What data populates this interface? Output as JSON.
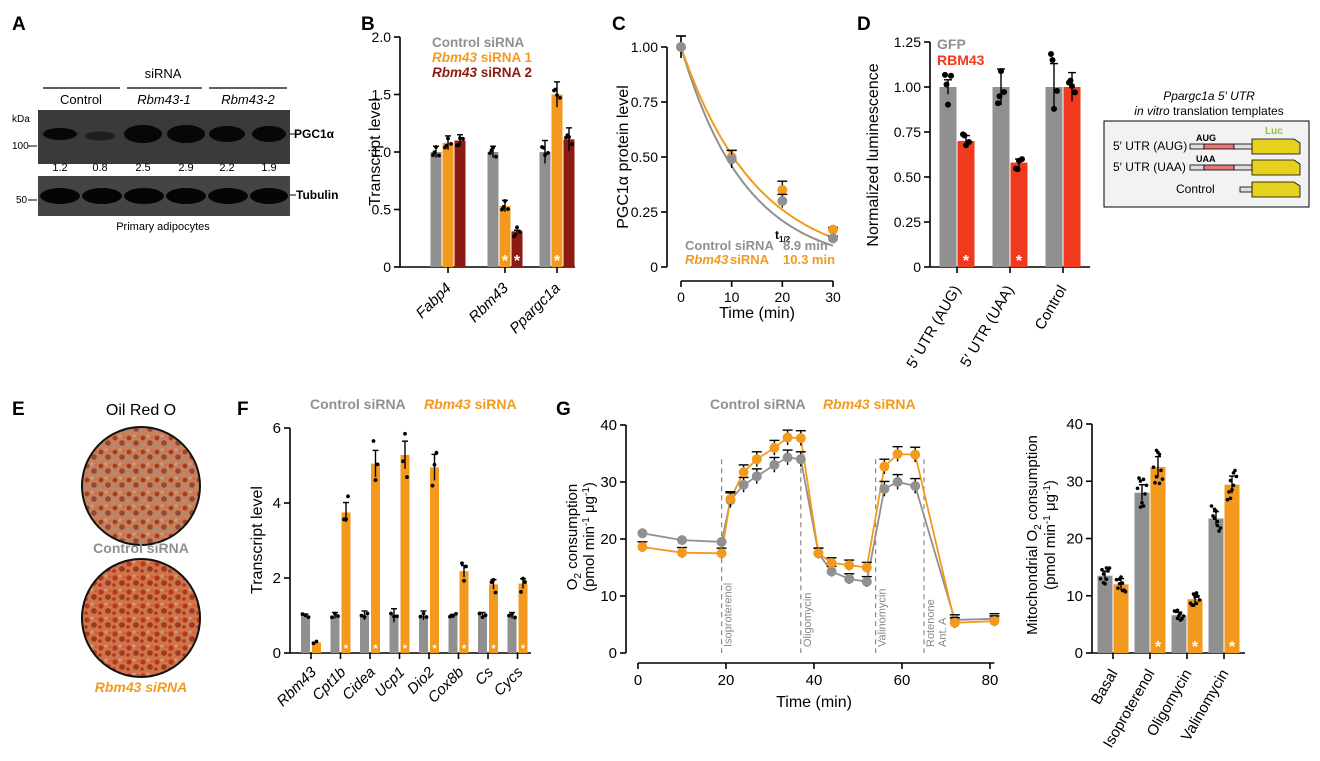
{
  "colors": {
    "gray": "#909090",
    "orange": "#f39a1e",
    "darkred": "#8b1a12",
    "red": "#f03a1e",
    "black": "#000000",
    "green": "#8dc63f",
    "yellow": "#e6d21e",
    "pink": "#e87878"
  },
  "panels": {
    "A": "A",
    "B": "B",
    "C": "C",
    "D": "D",
    "E": "E",
    "F": "F",
    "G": "G"
  },
  "panel_a": {
    "sirna_label": "siRNA",
    "kda_label": "kDa",
    "groups": [
      "Control",
      "Rbm43-1",
      "Rbm43-2"
    ],
    "pgc_label": "PGC1α",
    "tubulin_label": "Tubulin",
    "marker_100": "100",
    "marker_50": "50",
    "quant": [
      "1.2",
      "0.8",
      "2.5",
      "2.9",
      "2.2",
      "1.9"
    ],
    "caption": "Primary adipocytes"
  },
  "panel_e": {
    "title": "Oil Red O",
    "label_control": "Control siRNA",
    "label_rbm43": "Rbm43 siRNA"
  },
  "panel_d_inset": {
    "title_line1": "Ppargc1a 5′ UTR",
    "title_line2_italic": "in vitro",
    "title_line2_rest": " translation templates",
    "rows": [
      "5′ UTR (AUG)",
      "5′ UTR (UAA)",
      "Control"
    ],
    "aug": "AUG",
    "uaa": "UAA",
    "luc": "Luc"
  },
  "chart_data": [
    {
      "id": "B",
      "type": "bar",
      "title": "",
      "xlabel": "",
      "ylabel": "Transcript level",
      "ylim": [
        0,
        2.0
      ],
      "yticks": [
        "0",
        "0.5",
        "1.0",
        "1.5",
        "2.0"
      ],
      "categories": [
        "Fabp4",
        "Rbm43",
        "Ppargc1a"
      ],
      "legend": [
        "Control siRNA",
        "Rbm43 siRNA 1",
        "Rbm43 siRNA 2"
      ],
      "series": [
        {
          "name": "Control siRNA",
          "values": [
            1.0,
            1.0,
            1.0
          ],
          "err": [
            0.05,
            0.05,
            0.1
          ]
        },
        {
          "name": "Rbm43 siRNA 1",
          "values": [
            1.08,
            0.53,
            1.5
          ],
          "err": [
            0.06,
            0.05,
            0.11
          ]
        },
        {
          "name": "Rbm43 siRNA 2",
          "values": [
            1.1,
            0.31,
            1.11
          ],
          "err": [
            0.05,
            0.01,
            0.1
          ]
        }
      ],
      "significance": [
        [
          1,
          1
        ],
        [
          1,
          2
        ],
        [
          2,
          1
        ]
      ]
    },
    {
      "id": "C",
      "type": "line",
      "xlabel": "Time (min)",
      "ylabel": "PGC1α protein level",
      "xlim": [
        0,
        30
      ],
      "ylim": [
        0,
        1.0
      ],
      "xticks": [
        "0",
        "10",
        "20",
        "30"
      ],
      "yticks": [
        "0",
        "0.25",
        "0.50",
        "0.75",
        "1.00"
      ],
      "x": [
        0,
        10,
        20,
        30
      ],
      "series": [
        {
          "name": "Control siRNA",
          "values": [
            1.0,
            0.49,
            0.3,
            0.13
          ],
          "err": [
            0.05,
            0.04,
            0.03,
            0.01
          ]
        },
        {
          "name": "Rbm43 siRNA",
          "values": [
            1.0,
            0.5,
            0.35,
            0.17
          ],
          "err": [
            0.05,
            0.03,
            0.04,
            0.01
          ]
        }
      ],
      "halflife_symbol": "t",
      "halflife_sub": "1/2",
      "annotations": [
        "Control siRNA",
        "8.9 min",
        "Rbm43 siRNA",
        "10.3 min"
      ]
    },
    {
      "id": "D",
      "type": "bar",
      "ylabel": "Normalized luminescence",
      "ylim": [
        0,
        1.25
      ],
      "yticks": [
        "0",
        "0.25",
        "0.50",
        "0.75",
        "1.00",
        "1.25"
      ],
      "categories": [
        "5′ UTR (AUG)",
        "5′ UTR (UAA)",
        "Control"
      ],
      "legend": [
        "GFP",
        "RBM43"
      ],
      "series": [
        {
          "name": "GFP",
          "values": [
            1.0,
            1.0,
            1.0
          ],
          "err": [
            0.04,
            0.1,
            0.13
          ]
        },
        {
          "name": "RBM43",
          "values": [
            0.7,
            0.58,
            1.0
          ],
          "err": [
            0.03,
            0.02,
            0.08
          ]
        }
      ],
      "significance": [
        [
          1,
          0
        ],
        [
          1,
          1
        ]
      ]
    },
    {
      "id": "F",
      "type": "bar",
      "ylabel": "Transcript level",
      "ylim": [
        0,
        6
      ],
      "yticks": [
        "0",
        "2",
        "4",
        "6"
      ],
      "categories": [
        "Rbm43",
        "Cpt1b",
        "Cidea",
        "Ucp1",
        "Dio2",
        "Cox8b",
        "Cs",
        "Cycs"
      ],
      "legend": [
        "Control siRNA",
        "Rbm43 siRNA"
      ],
      "series": [
        {
          "name": "Control siRNA",
          "values": [
            1.0,
            1.0,
            1.0,
            1.0,
            1.0,
            1.0,
            1.0,
            1.0
          ],
          "err": [
            0.04,
            0.08,
            0.12,
            0.18,
            0.12,
            0.03,
            0.08,
            0.08
          ]
        },
        {
          "name": "Rbm43 siRNA",
          "values": [
            0.28,
            3.75,
            5.05,
            5.28,
            4.95,
            2.18,
            1.83,
            1.85
          ]
        }
      ]
    },
    {
      "id": "G1",
      "type": "line",
      "xlabel": "Time (min)",
      "ylabel_line1": "O",
      "ylabel_line2": "(pmol min",
      "ylim": [
        0,
        40
      ],
      "xlim": [
        0,
        80
      ],
      "ylabel_text": [
        "O",
        "2",
        " consumption"
      ],
      "ylabel_unit": [
        "(pmol min",
        "-1",
        " μg",
        "-1",
        ")"
      ],
      "xticks": [
        "0",
        "20",
        "40",
        "60",
        "80"
      ],
      "yticks": [
        "0",
        "10",
        "20",
        "30",
        "40"
      ],
      "legend": [
        "Control siRNA",
        "Rbm43 siRNA"
      ],
      "x": [
        1,
        10,
        19,
        21,
        24,
        27,
        31,
        34,
        37,
        41,
        44,
        48,
        52,
        56,
        59,
        63,
        72,
        81
      ],
      "series": [
        {
          "name": "Control siRNA",
          "values": [
            21.0,
            19.8,
            19.5,
            26.8,
            29.5,
            31.0,
            33.0,
            34.3,
            34.0,
            17.5,
            14.3,
            13.0,
            12.5,
            28.8,
            30.0,
            29.3,
            5.8,
            6.0
          ]
        },
        {
          "name": "Rbm43 siRNA",
          "values": [
            18.6,
            17.6,
            17.5,
            27.0,
            31.7,
            34.0,
            36.0,
            37.8,
            37.7,
            17.5,
            15.8,
            15.4,
            15.0,
            32.7,
            34.9,
            34.8,
            5.3,
            5.6
          ]
        }
      ],
      "injections": [
        {
          "x": 19,
          "label": "Isoproterenol"
        },
        {
          "x": 37,
          "label": "Oligomycin"
        },
        {
          "x": 54,
          "label": "Valinomycin"
        },
        {
          "x": 65,
          "label": "Rotenone"
        }
      ],
      "ant_a": "Ant. A"
    },
    {
      "id": "G2",
      "type": "bar",
      "ylim": [
        0,
        40
      ],
      "yticks": [
        "0",
        "10",
        "20",
        "30",
        "40"
      ],
      "ylabel_line1": [
        "Mitochondrial O",
        "2",
        " consumption"
      ],
      "ylabel_line2": [
        "(pmol min",
        "-1",
        " μg",
        "-1",
        ")"
      ],
      "categories": [
        "Basal",
        "Isoproterenol",
        "Oligomycin",
        "Valinomycin"
      ],
      "series": [
        {
          "name": "Control siRNA",
          "values": [
            13.5,
            28.0,
            6.6,
            23.5
          ],
          "err": [
            0.8,
            1.4,
            0.5,
            1.2
          ]
        },
        {
          "name": "Rbm43 siRNA",
          "values": [
            12.0,
            32.5,
            9.4,
            29.4
          ],
          "err": [
            1.0,
            1.8,
            0.8,
            1.5
          ]
        }
      ],
      "significance": [
        [
          1,
          1
        ],
        [
          1,
          2
        ],
        [
          1,
          3
        ]
      ]
    }
  ],
  "star": "*"
}
